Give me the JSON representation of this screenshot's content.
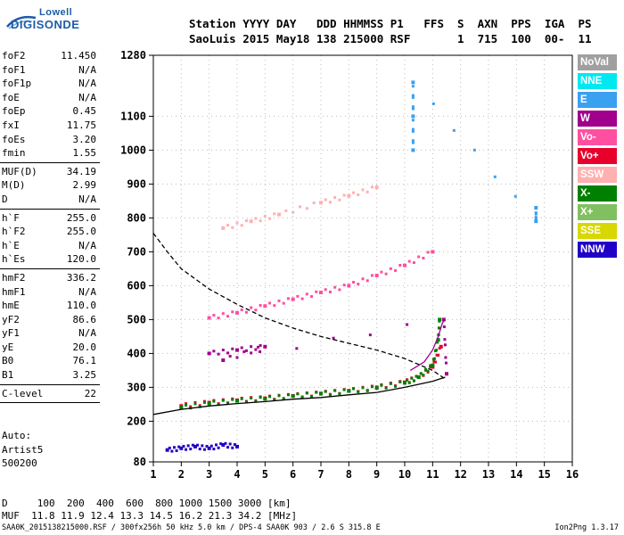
{
  "logo": {
    "line1": "Lowell",
    "line2": "DIGISONDE"
  },
  "header": {
    "line1": "Station YYYY DAY   DDD HHMMSS P1   FFS  S  AXN  PPS  IGA  PS",
    "line2": "SaoLuis 2015 May18 138 215000 RSF       1  715  100  00-  11"
  },
  "params": [
    [
      {
        "label": "foF2",
        "value": "11.450"
      },
      {
        "label": "foF1",
        "value": "N/A"
      },
      {
        "label": "foF1p",
        "value": "N/A"
      },
      {
        "label": "foE",
        "value": "N/A"
      },
      {
        "label": "foEp",
        "value": "0.45"
      },
      {
        "label": "fxI",
        "value": "11.75"
      },
      {
        "label": "foEs",
        "value": "3.20"
      },
      {
        "label": "fmin",
        "value": "1.55"
      }
    ],
    [
      {
        "label": "MUF(D)",
        "value": "34.19"
      },
      {
        "label": "M(D)",
        "value": "2.99"
      },
      {
        "label": "D",
        "value": "N/A"
      }
    ],
    [
      {
        "label": "h`F",
        "value": "255.0"
      },
      {
        "label": "h`F2",
        "value": "255.0"
      },
      {
        "label": "h`E",
        "value": "N/A"
      },
      {
        "label": "h`Es",
        "value": "120.0"
      }
    ],
    [
      {
        "label": "hmF2",
        "value": "336.2"
      },
      {
        "label": "hmF1",
        "value": "N/A"
      },
      {
        "label": "hmE",
        "value": "110.0"
      },
      {
        "label": "yF2",
        "value": "86.6"
      },
      {
        "label": "yF1",
        "value": "N/A"
      },
      {
        "label": "yE",
        "value": "20.0"
      },
      {
        "label": "B0",
        "value": "76.1"
      },
      {
        "label": "B1",
        "value": "3.25"
      }
    ],
    [
      {
        "label": "C-level",
        "value": "22"
      }
    ]
  ],
  "auto": {
    "line1": "Auto:",
    "line2": "Artist5",
    "line3": "500200"
  },
  "bottom": {
    "row1": "D     100  200  400  600  800 1000 1500 3000 [km]",
    "row2": "MUF  11.8 11.9 12.4 13.3 14.5 16.2 21.3 34.2 [MHz]"
  },
  "footer": {
    "left": "SAA0K_2015138215000.RSF / 300fx256h 50 kHz 5.0 km / DPS-4 SAA0K 903 / 2.6 S 315.8 E",
    "right": "Ion2Png 1.3.17"
  },
  "legend": [
    {
      "label": "NoVal",
      "color": "#a0a0a0"
    },
    {
      "label": "NNE",
      "color": "#00e8f0"
    },
    {
      "label": "E",
      "color": "#3aa0f0"
    },
    {
      "label": "W",
      "color": "#a0008c"
    },
    {
      "label": "Vo-",
      "color": "#ff4fa0"
    },
    {
      "label": "Vo+",
      "color": "#e8002c"
    },
    {
      "label": "SSW",
      "color": "#ffb0b0"
    },
    {
      "label": "X-",
      "color": "#008000"
    },
    {
      "label": "X+",
      "color": "#80c060"
    },
    {
      "label": "SSE",
      "color": "#d8d800"
    },
    {
      "label": "NNW",
      "color": "#2000c8"
    }
  ],
  "chart_data": {
    "type": "scatter",
    "x_ticks": [
      "1",
      "2",
      "3",
      "4",
      "5",
      "6",
      "7",
      "8",
      "9",
      "10",
      "11",
      "12",
      "13",
      "14",
      "15",
      "16"
    ],
    "y_ticks": [
      "80",
      "200",
      "300",
      "400",
      "500",
      "600",
      "700",
      "800",
      "900",
      "1000",
      "1100",
      "1280"
    ],
    "xlim": [
      1,
      16
    ],
    "ylim": [
      80,
      1280
    ],
    "grid": true,
    "series": [
      {
        "color": "#e8002c",
        "points": [
          [
            2.0,
            245
          ],
          [
            3.0,
            255
          ],
          [
            4.0,
            262
          ],
          [
            5.0,
            268
          ],
          [
            6.0,
            275
          ],
          [
            7.0,
            282
          ],
          [
            8.0,
            290
          ],
          [
            9.0,
            300
          ],
          [
            10.0,
            315
          ],
          [
            10.5,
            330
          ],
          [
            11.0,
            360
          ],
          [
            11.3,
            420
          ]
        ]
      },
      {
        "color": "#008000",
        "points": [
          [
            2.0,
            240
          ],
          [
            3.0,
            252
          ],
          [
            4.0,
            260
          ],
          [
            5.0,
            266
          ],
          [
            6.0,
            274
          ],
          [
            7.0,
            281
          ],
          [
            8.0,
            289
          ],
          [
            9.0,
            298
          ],
          [
            10.0,
            313
          ],
          [
            10.5,
            330
          ],
          [
            11.0,
            365
          ],
          [
            11.2,
            440
          ],
          [
            11.25,
            500
          ]
        ]
      },
      {
        "color": "#ff4fa0",
        "points": [
          [
            3.0,
            505
          ],
          [
            4.0,
            520
          ],
          [
            5.0,
            540
          ],
          [
            6.0,
            560
          ],
          [
            7.0,
            580
          ],
          [
            8.0,
            600
          ],
          [
            9.0,
            630
          ],
          [
            10.0,
            660
          ],
          [
            11.0,
            700
          ]
        ]
      },
      {
        "color": "#ffb0b0",
        "points": [
          [
            3.5,
            770
          ],
          [
            4.5,
            790
          ],
          [
            5.5,
            810
          ],
          [
            7.0,
            845
          ],
          [
            8.0,
            865
          ],
          [
            9.0,
            890
          ]
        ]
      },
      {
        "color": "#a0008c",
        "points": [
          [
            3.0,
            400
          ],
          [
            4.0,
            410
          ],
          [
            5.0,
            420
          ],
          [
            3.5,
            380
          ],
          [
            11.4,
            500
          ],
          [
            11.5,
            340
          ]
        ]
      },
      {
        "color": "#3aa0f0",
        "points": [
          [
            10.3,
            1000
          ],
          [
            10.3,
            1100
          ],
          [
            10.3,
            1200
          ],
          [
            14.7,
            790
          ],
          [
            14.7,
            830
          ]
        ]
      },
      {
        "color": "#2000c8",
        "points": [
          [
            1.5,
            115
          ],
          [
            2.0,
            120
          ],
          [
            2.5,
            125
          ],
          [
            3.0,
            120
          ],
          [
            3.5,
            130
          ],
          [
            4.0,
            125
          ]
        ]
      }
    ],
    "lines": [
      {
        "style": "dashed",
        "color": "#000000",
        "points": [
          [
            1.0,
            755
          ],
          [
            1.5,
            700
          ],
          [
            2.0,
            650
          ],
          [
            3.0,
            590
          ],
          [
            4.0,
            545
          ],
          [
            5.0,
            505
          ],
          [
            6.0,
            475
          ],
          [
            7.0,
            450
          ],
          [
            8.0,
            430
          ],
          [
            9.0,
            410
          ],
          [
            10.0,
            385
          ],
          [
            11.0,
            350
          ],
          [
            11.45,
            325
          ]
        ]
      },
      {
        "style": "solid",
        "color": "#000000",
        "points": [
          [
            1.0,
            220
          ],
          [
            2.0,
            235
          ],
          [
            3.0,
            245
          ],
          [
            4.0,
            252
          ],
          [
            5.0,
            258
          ],
          [
            6.0,
            265
          ],
          [
            7.0,
            270
          ],
          [
            8.0,
            278
          ],
          [
            9.0,
            285
          ],
          [
            10.0,
            300
          ],
          [
            11.0,
            318
          ],
          [
            11.45,
            330
          ]
        ]
      },
      {
        "style": "solid",
        "color": "#a0008c",
        "points": [
          [
            10.2,
            350
          ],
          [
            10.7,
            375
          ],
          [
            11.0,
            410
          ],
          [
            11.2,
            450
          ],
          [
            11.35,
            490
          ],
          [
            11.45,
            500
          ]
        ]
      }
    ]
  }
}
